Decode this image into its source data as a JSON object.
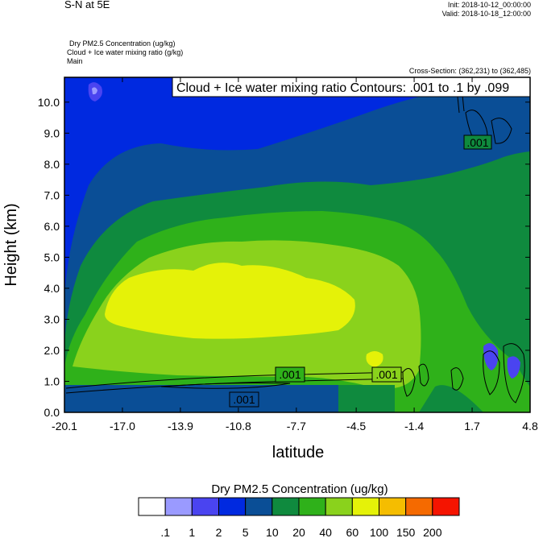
{
  "header": {
    "left_title": "S-N at 5E",
    "init": "Init: 2018-10-12_00:00:00",
    "valid": "Valid: 2018-10-18_12:00:00",
    "field_lines": [
      "Dry PM2.5 Concentration   (ug/kg)",
      "Cloud + Ice water mixing ratio   (g/kg)",
      "Main"
    ],
    "cross_section": "Cross-Section: (362,231) to (362,485)"
  },
  "contours": {
    "info": "Cloud + Ice water mixing ratio Contours: .001 to .1 by .099",
    "label": ".001"
  },
  "colors": {
    "levels": [
      "#ffffff",
      "#9a9aff",
      "#4a44f0",
      "#0029e0",
      "#0a4e96",
      "#0f8a3e",
      "#2fb11a",
      "#8ad21c",
      "#e5f208",
      "#f5bd00",
      "#f56a00",
      "#f51400"
    ]
  },
  "chart_data": {
    "type": "heatmap",
    "title": "Dry PM2.5 Concentration (ug/kg) with Cloud + Ice water mixing ratio contours",
    "xlabel": "latitude",
    "ylabel": "Height (km)",
    "x_ticks": [
      "-20.1",
      "-17.0",
      "-13.9",
      "-10.8",
      "-7.7",
      "-4.5",
      "-1.4",
      "1.7",
      "4.8"
    ],
    "y_ticks": [
      "0.0",
      "1.0",
      "2.0",
      "3.0",
      "4.0",
      "5.0",
      "6.0",
      "7.0",
      "8.0",
      "9.0",
      "10.0"
    ],
    "xlim": [
      -20.1,
      4.8
    ],
    "ylim": [
      0.0,
      10.8
    ],
    "colorbar": {
      "title": "Dry PM2.5 Concentration  (ug/kg)",
      "labels": [
        ".1",
        "1",
        "2",
        "5",
        "10",
        "20",
        "40",
        "60",
        "100",
        "150",
        "200"
      ]
    },
    "contour_levels": [
      0.001,
      0.1
    ]
  }
}
